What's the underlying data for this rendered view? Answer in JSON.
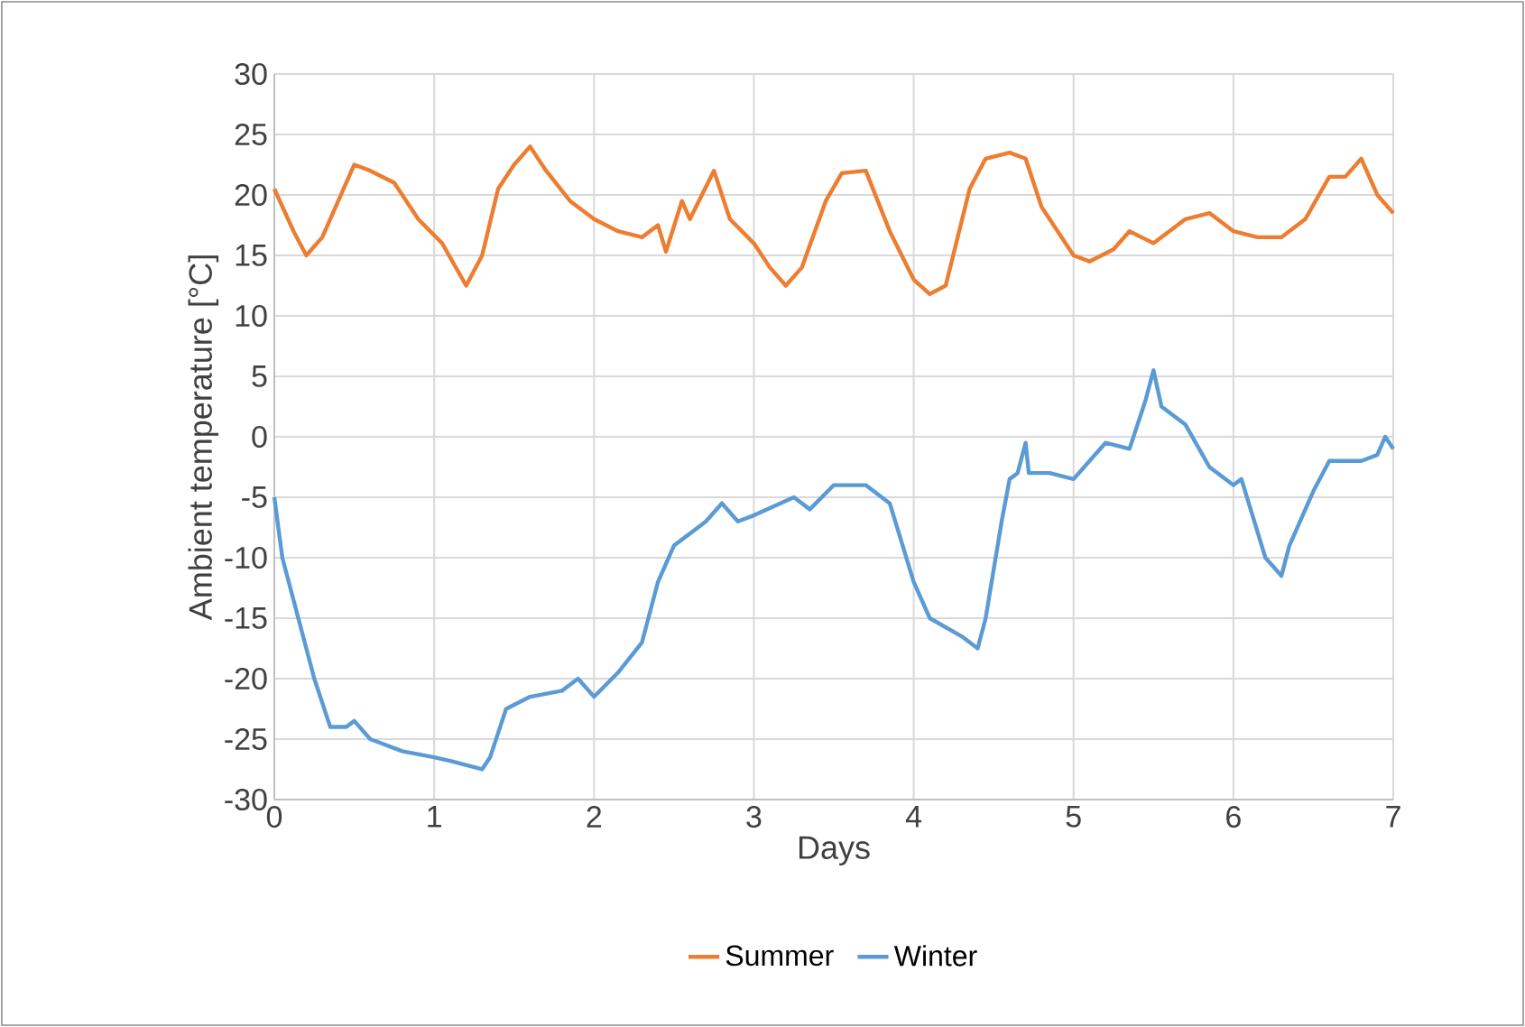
{
  "chart_data": {
    "type": "line",
    "xlabel": "Days",
    "ylabel": "Ambient temperature [°C]",
    "xlim": [
      0,
      7
    ],
    "xticks": [
      0,
      1,
      2,
      3,
      4,
      5,
      6,
      7
    ],
    "ylim": [
      -30,
      30
    ],
    "yticks": [
      -30,
      -25,
      -20,
      -15,
      -10,
      -5,
      0,
      5,
      10,
      15,
      20,
      25,
      30
    ],
    "grid": true,
    "legend": "bottom",
    "marker": "none",
    "line_style": "solid",
    "series": [
      {
        "name": "Summer",
        "color": "#ed7d31",
        "x": [
          0,
          0.12,
          0.2,
          0.3,
          0.5,
          0.6,
          0.75,
          0.9,
          1.05,
          1.2,
          1.3,
          1.4,
          1.5,
          1.6,
          1.7,
          1.85,
          2,
          2.15,
          2.3,
          2.4,
          2.45,
          2.55,
          2.6,
          2.75,
          2.85,
          3,
          3.1,
          3.2,
          3.3,
          3.45,
          3.55,
          3.7,
          3.85,
          4,
          4.1,
          4.2,
          4.35,
          4.45,
          4.6,
          4.7,
          4.8,
          5,
          5.1,
          5.25,
          5.35,
          5.5,
          5.7,
          5.85,
          6,
          6.15,
          6.3,
          6.45,
          6.6,
          6.7,
          6.8,
          6.9,
          7
        ],
        "values": [
          20.5,
          17,
          15,
          16.5,
          22.5,
          22,
          21,
          18,
          16,
          12.5,
          15,
          20.5,
          22.5,
          24,
          22,
          19.5,
          18,
          17,
          16.5,
          17.5,
          15.3,
          19.5,
          18,
          22,
          18,
          16,
          14,
          12.5,
          14,
          19.5,
          21.8,
          22,
          17,
          13,
          11.8,
          12.5,
          20.5,
          23,
          23.5,
          23,
          19,
          15,
          14.5,
          15.5,
          17,
          16,
          18,
          18.5,
          17,
          16.5,
          16.5,
          18,
          21.5,
          21.5,
          23,
          20,
          18.5
        ]
      },
      {
        "name": "Winter",
        "color": "#5b9bd5",
        "x": [
          0,
          0.05,
          0.15,
          0.25,
          0.35,
          0.45,
          0.5,
          0.6,
          0.8,
          1,
          1.1,
          1.3,
          1.35,
          1.45,
          1.6,
          1.8,
          1.9,
          2,
          2.15,
          2.3,
          2.4,
          2.5,
          2.7,
          2.8,
          2.9,
          3,
          3.25,
          3.35,
          3.5,
          3.7,
          3.85,
          4,
          4.1,
          4.3,
          4.4,
          4.45,
          4.55,
          4.6,
          4.65,
          4.7,
          4.72,
          4.85,
          5,
          5.1,
          5.2,
          5.35,
          5.45,
          5.5,
          5.55,
          5.7,
          5.85,
          6,
          6.05,
          6.2,
          6.3,
          6.35,
          6.5,
          6.6,
          6.8,
          6.9,
          6.95,
          7
        ],
        "values": [
          -5,
          -10,
          -15,
          -20,
          -24,
          -24,
          -23.5,
          -25,
          -26,
          -26.5,
          -26.8,
          -27.5,
          -26.5,
          -22.5,
          -21.5,
          -21,
          -20,
          -21.5,
          -19.5,
          -17,
          -12,
          -9,
          -7,
          -5.5,
          -7,
          -6.5,
          -5,
          -6,
          -4,
          -4,
          -5.5,
          -12,
          -15,
          -16.5,
          -17.5,
          -15,
          -7,
          -3.5,
          -3,
          -0.5,
          -3,
          -3,
          -3.5,
          -2,
          -0.5,
          -1,
          3,
          5.5,
          2.5,
          1,
          -2.5,
          -4,
          -3.5,
          -10,
          -11.5,
          -9,
          -4.5,
          -2,
          -2,
          -1.5,
          0,
          -1
        ]
      }
    ]
  }
}
